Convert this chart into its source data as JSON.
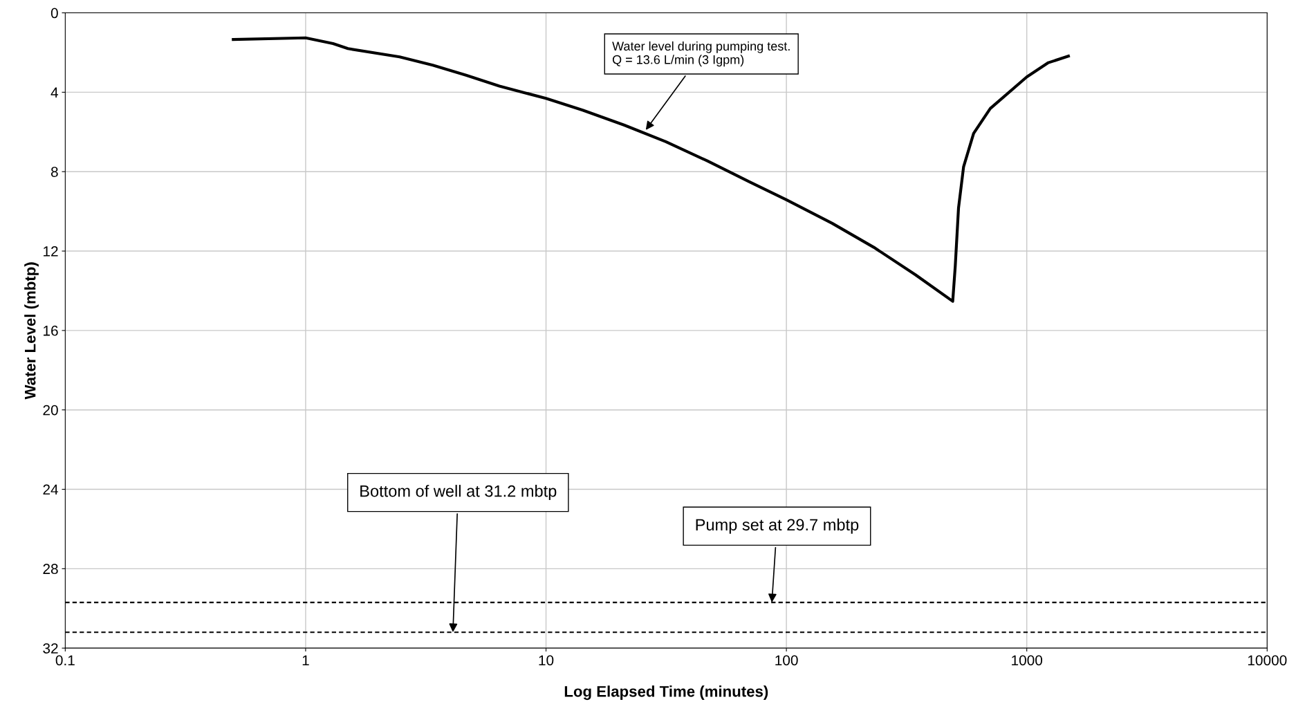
{
  "chart_data": {
    "type": "line",
    "xlabel": "Log Elapsed Time (minutes)",
    "ylabel": "Water Level (mbtp)",
    "log": "x",
    "xlim": [
      0.1,
      10000
    ],
    "xticks": [
      0.1,
      1,
      10,
      100,
      1000,
      10000
    ],
    "ylim": [
      32,
      0
    ],
    "yticks": [
      0,
      4,
      8,
      12,
      16,
      20,
      24,
      28,
      32
    ],
    "grid": true,
    "marker": "none",
    "line_style": "solid",
    "series": [
      {
        "color": "#000000",
        "x": [
          0.5,
          1,
          1.3,
          1.5,
          2.46,
          3.38,
          4.65,
          6.4,
          10,
          14.2,
          21.1,
          31.5,
          46.9,
          69.9,
          100,
          155,
          231,
          344,
          492,
          504,
          520,
          546,
          601,
          705,
          1000,
          1230,
          1490
        ],
        "values": [
          1.34,
          1.26,
          1.55,
          1.8,
          2.22,
          2.64,
          3.14,
          3.69,
          4.31,
          4.9,
          5.65,
          6.49,
          7.46,
          8.5,
          9.42,
          10.6,
          11.81,
          13.19,
          14.53,
          12.77,
          9.84,
          7.75,
          6.07,
          4.82,
          3.23,
          2.51,
          2.18
        ]
      }
    ],
    "ref_lines": [
      {
        "axis": "y",
        "value": 29.7,
        "color": "#000000",
        "line_style": "dashed"
      },
      {
        "axis": "y",
        "value": 31.2,
        "color": "#000000",
        "line_style": "dashed"
      }
    ],
    "annotations": [
      {
        "text": "Water level during pumping test.\nQ = 13.6 L/min (3 Igpm)",
        "x": 26,
        "y": 5.9
      },
      {
        "text": "Bottom of well at 31.2 mbtp",
        "x": 4.1,
        "y": 31.2
      },
      {
        "text": "Pump set at 29.7 mbtp",
        "x": 87,
        "y": 29.7
      }
    ]
  }
}
